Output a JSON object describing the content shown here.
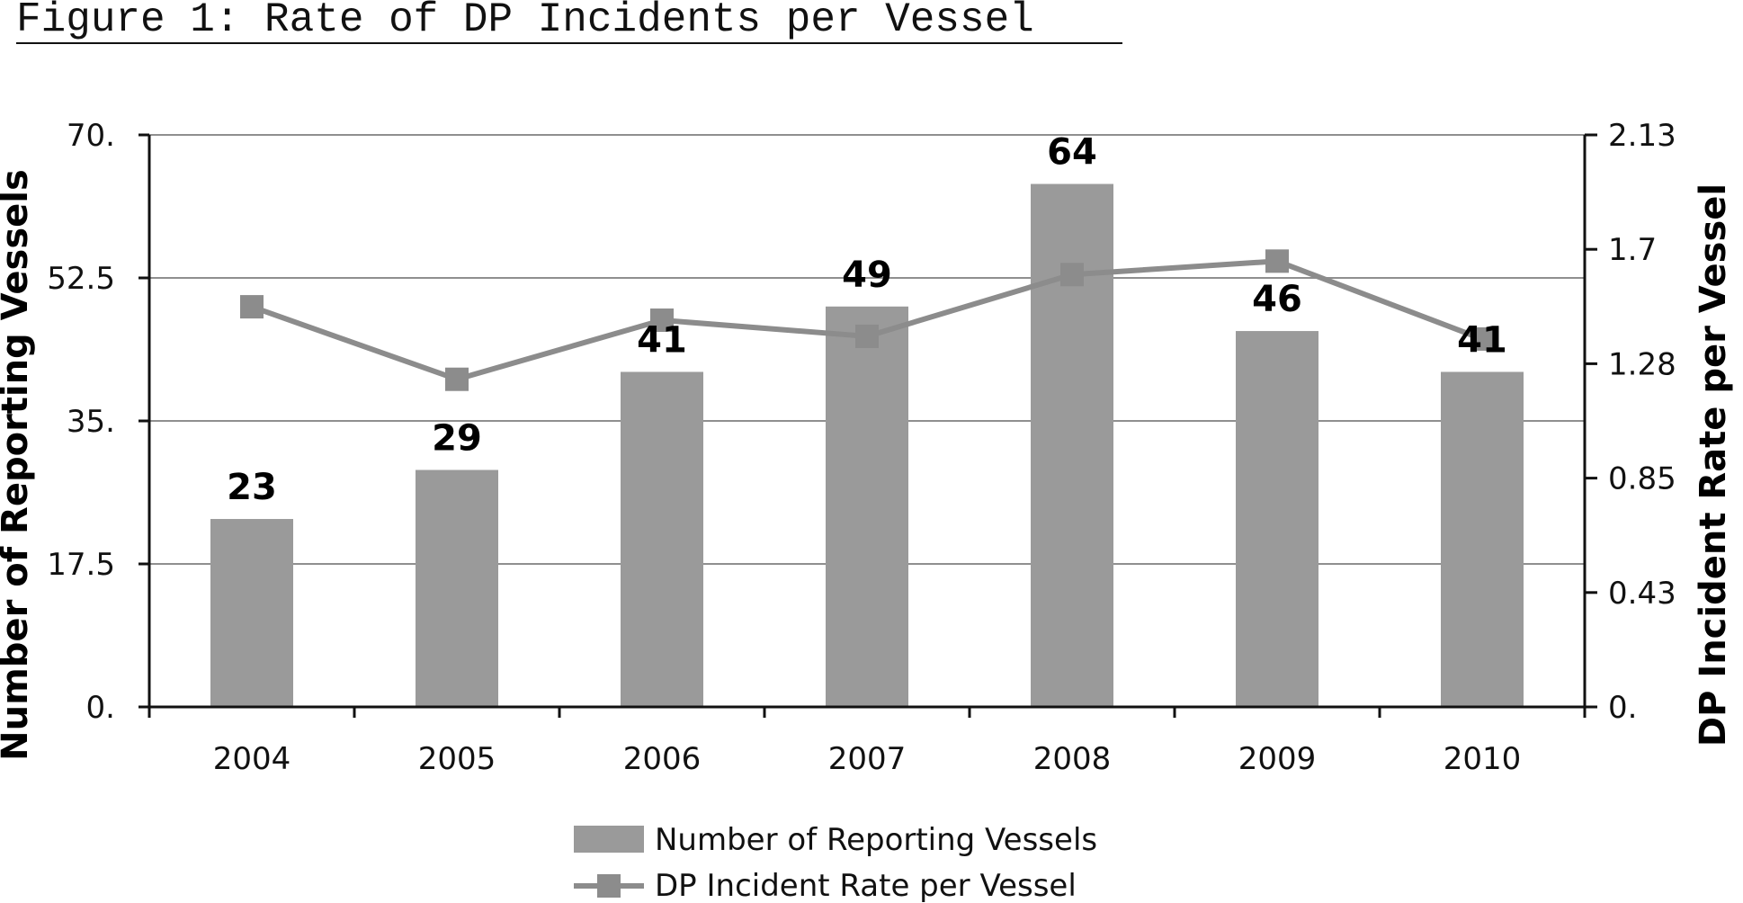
{
  "figure": {
    "title": "Figure 1: Rate of DP Incidents per Vessel"
  },
  "chart_data": {
    "type": "bar",
    "categories": [
      "2004",
      "2005",
      "2006",
      "2007",
      "2008",
      "2009",
      "2010"
    ],
    "series": [
      {
        "name": "Number of Reporting Vessels",
        "type": "bar",
        "axis": "left",
        "values": [
          23,
          29,
          41,
          49,
          64,
          46,
          41
        ],
        "data_labels": [
          "23",
          "29",
          "41",
          "49",
          "64",
          "46",
          "41"
        ],
        "color": "#9a9a9a"
      },
      {
        "name": "DP Incident Rate per Vessel",
        "type": "line",
        "axis": "right",
        "values": [
          1.49,
          1.22,
          1.44,
          1.38,
          1.61,
          1.66,
          1.37
        ],
        "color": "#8c8c8c"
      }
    ],
    "title": "Figure 1: Rate of DP Incidents per Vessel",
    "ylabel": "Number of Reporting Vessels",
    "y2label": "DP Incident Rate per Vessel",
    "ylim": [
      0,
      70
    ],
    "y2lim": [
      0,
      2.13
    ],
    "yticks": [
      "0.",
      "17.5",
      "35.",
      "52.5",
      "70."
    ],
    "y2ticks": [
      "0.",
      "0.43",
      "0.85",
      "1.28",
      "1.7",
      "2.13"
    ],
    "grid": true,
    "legend": "bottom-center"
  }
}
